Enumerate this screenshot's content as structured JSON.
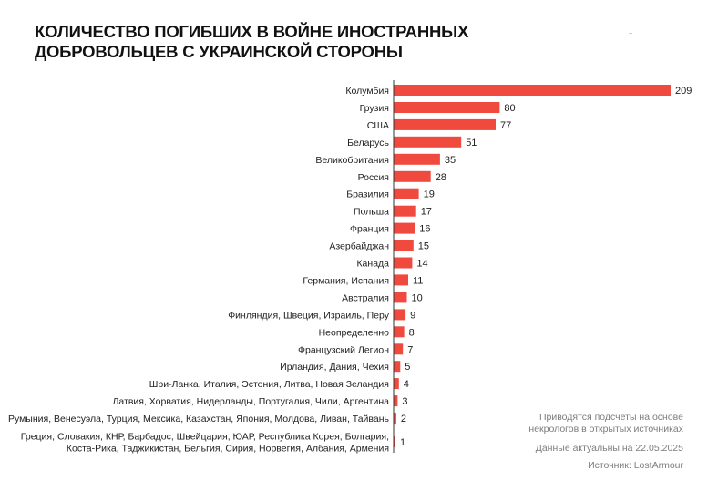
{
  "title": {
    "line1": "КОЛИЧЕСТВО ПОГИБШИХ В ВОЙНЕ ИНОСТРАННЫХ",
    "line2": "ДОБРОВОЛЬЦЕВ С УКРАИНСКОЙ СТОРОНЫ"
  },
  "notes": {
    "line1": "Приводятся подсчеты на основе",
    "line2": "некрологов в открытых источниках",
    "date": "Данные актуальны на 22.05.2025",
    "source": "Источник: LostArmour"
  },
  "colors": {
    "bar": "#f04a3e",
    "axis": "#333333"
  },
  "chart_data": {
    "type": "bar",
    "orientation": "horizontal",
    "title": "КОЛИЧЕСТВО ПОГИБШИХ В ВОЙНЕ ИНОСТРАННЫХ ДОБРОВОЛЬЦЕВ С УКРАИНСКОЙ СТОРОНЫ",
    "xlim": [
      0,
      209
    ],
    "grid": false,
    "categories": [
      [
        "Колумбия"
      ],
      [
        "Грузия"
      ],
      [
        "США"
      ],
      [
        "Беларусь"
      ],
      [
        "Великобритания"
      ],
      [
        "Россия"
      ],
      [
        "Бразилия"
      ],
      [
        "Польша"
      ],
      [
        "Франция"
      ],
      [
        "Азербайджан"
      ],
      [
        "Канада"
      ],
      [
        "Германия, Испания"
      ],
      [
        "Австралия"
      ],
      [
        "Финляндия, Швеция, Израиль, Перу"
      ],
      [
        "Неопределенно"
      ],
      [
        "Французский Легион"
      ],
      [
        "Ирландия, Дания, Чехия"
      ],
      [
        "Шри-Ланка, Италия, Эстония, Литва, Новая Зеландия"
      ],
      [
        "Латвия, Хорватия, Нидерланды, Португалия, Чили, Аргентина"
      ],
      [
        "Румыния, Венесуэла, Турция, Мексика, Казахстан, Япония, Молдова, Ливан, Тайвань"
      ],
      [
        "Греция, Словакия, КНР, Барбадос, Швейцария, ЮАР, Республика Корея, Болгария,",
        "Коста-Рика, Таджикистан, Бельгия, Сирия, Норвегия, Албания, Армения"
      ]
    ],
    "values": [
      209,
      80,
      77,
      51,
      35,
      28,
      19,
      17,
      16,
      15,
      14,
      11,
      10,
      9,
      8,
      7,
      5,
      4,
      3,
      2,
      1
    ]
  }
}
